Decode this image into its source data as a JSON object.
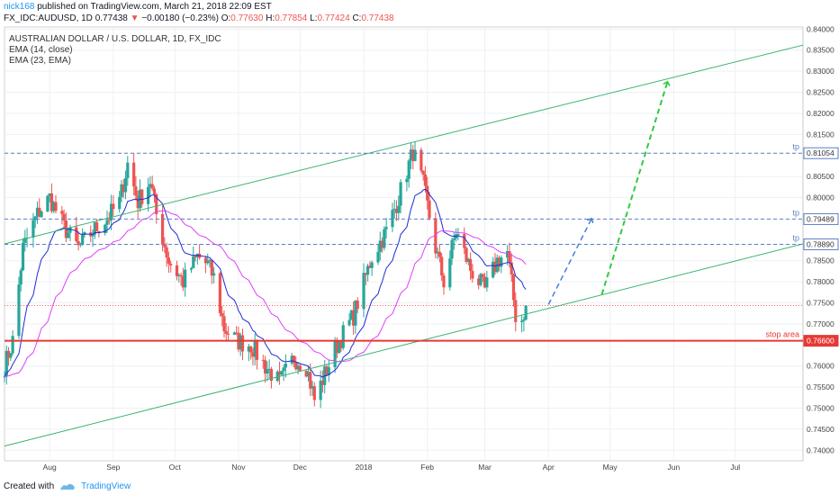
{
  "header": {
    "author": "nick168",
    "published": "published on TradingView.com, March 21, 2018 22:09 EST",
    "symbol": "FX_IDC:AUDUSD, 1D",
    "price": "0.77438",
    "arrow": "▼",
    "change": "−0.00180 (−0.23%)",
    "open_label": "O:",
    "open": "0.77630",
    "high_label": "H:",
    "high": "0.77854",
    "low_label": "L:",
    "low": "0.77424",
    "close_label": "C:",
    "close": "0.77438"
  },
  "legend": {
    "title": "AUSTRALIAN DOLLAR / U.S. DOLLAR, 1D, FX_IDC",
    "ema1": "EMA (14, close)",
    "ema2": "EMA (23, EMA)"
  },
  "footer": {
    "created_with": "Created with",
    "brand": "TradingView"
  },
  "colors": {
    "up": "#26a69a",
    "down": "#ef5350",
    "ema14": "#1e2bd6",
    "ema23": "#e040fb",
    "channel": "#3cb371",
    "level": "#5b7fc7",
    "stop": "#e53935",
    "arrow_blue": "#4a7fd4",
    "arrow_green": "#2ecc40",
    "price_line": "#ef5350"
  },
  "chart_data": {
    "type": "candlestick",
    "x_axis_labels": [
      "Aug",
      "Sep",
      "Oct",
      "Nov",
      "Dec",
      "2018",
      "Feb",
      "Mar",
      "Apr",
      "May",
      "Jun",
      "Jul"
    ],
    "y_ticks": [
      "0.84000",
      "0.83500",
      "0.83000",
      "0.82500",
      "0.82000",
      "0.81500",
      "0.81054",
      "0.80500",
      "0.80000",
      "0.79489",
      "0.78890",
      "0.78500",
      "0.78000",
      "0.77500",
      "0.77000",
      "0.76600",
      "0.76000",
      "0.75500",
      "0.75000",
      "0.74500",
      "0.74000"
    ],
    "ylim": [
      0.7375,
      0.8405
    ],
    "grid": true,
    "levels": [
      {
        "label": "tp",
        "value": 0.81054,
        "price": "0.81054"
      },
      {
        "label": "tp",
        "value": 0.79489,
        "price": "0.79489"
      },
      {
        "label": "tp",
        "value": 0.7889,
        "price": "0.78890"
      },
      {
        "label": "stop area",
        "value": 0.766,
        "price": "0.76600"
      }
    ],
    "last_price": 0.77438,
    "channel": {
      "upper": [
        [
          "2017-07-10",
          0.789
        ],
        [
          "2018-08-03",
          0.8362
        ]
      ],
      "lower": [
        [
          "2017-07-10",
          0.741
        ],
        [
          "2018-08-03",
          0.789
        ]
      ]
    },
    "projections": [
      {
        "color": "blue",
        "from": [
          "2018-04-01",
          0.7746
        ],
        "to": [
          "2018-04-22",
          0.795
        ]
      },
      {
        "color": "green",
        "from": [
          "2018-04-27",
          0.777
        ],
        "to": [
          "2018-05-29",
          0.8275
        ]
      }
    ],
    "waypoints": [
      [
        "2017-07-10",
        0.76
      ],
      [
        "2017-07-14",
        0.766
      ],
      [
        "2017-07-19",
        0.788
      ],
      [
        "2017-07-26",
        0.796
      ],
      [
        "2017-08-01",
        0.8
      ],
      [
        "2017-08-08",
        0.793
      ],
      [
        "2017-08-15",
        0.788
      ],
      [
        "2017-08-22",
        0.792
      ],
      [
        "2017-08-29",
        0.795
      ],
      [
        "2017-09-04",
        0.799
      ],
      [
        "2017-09-08",
        0.808
      ],
      [
        "2017-09-13",
        0.799
      ],
      [
        "2017-09-19",
        0.804
      ],
      [
        "2017-09-22",
        0.796
      ],
      [
        "2017-09-28",
        0.785
      ],
      [
        "2017-10-05",
        0.78
      ],
      [
        "2017-10-12",
        0.786
      ],
      [
        "2017-10-17",
        0.784
      ],
      [
        "2017-10-20",
        0.781
      ],
      [
        "2017-10-25",
        0.769
      ],
      [
        "2017-10-31",
        0.766
      ],
      [
        "2017-11-07",
        0.765
      ],
      [
        "2017-11-14",
        0.76
      ],
      [
        "2017-11-21",
        0.756
      ],
      [
        "2017-11-28",
        0.762
      ],
      [
        "2017-12-04",
        0.76
      ],
      [
        "2017-12-08",
        0.752
      ],
      [
        "2017-12-13",
        0.758
      ],
      [
        "2017-12-19",
        0.765
      ],
      [
        "2017-12-27",
        0.772
      ],
      [
        "2018-01-05",
        0.786
      ],
      [
        "2018-01-12",
        0.792
      ],
      [
        "2018-01-18",
        0.8
      ],
      [
        "2018-01-25",
        0.811
      ],
      [
        "2018-01-30",
        0.803
      ],
      [
        "2018-02-05",
        0.788
      ],
      [
        "2018-02-09",
        0.78
      ],
      [
        "2018-02-15",
        0.792
      ],
      [
        "2018-02-22",
        0.783
      ],
      [
        "2018-03-01",
        0.778
      ],
      [
        "2018-03-07",
        0.785
      ],
      [
        "2018-03-12",
        0.787
      ],
      [
        "2018-03-16",
        0.772
      ],
      [
        "2018-03-19",
        0.771
      ],
      [
        "2018-03-21",
        0.7744
      ]
    ]
  }
}
